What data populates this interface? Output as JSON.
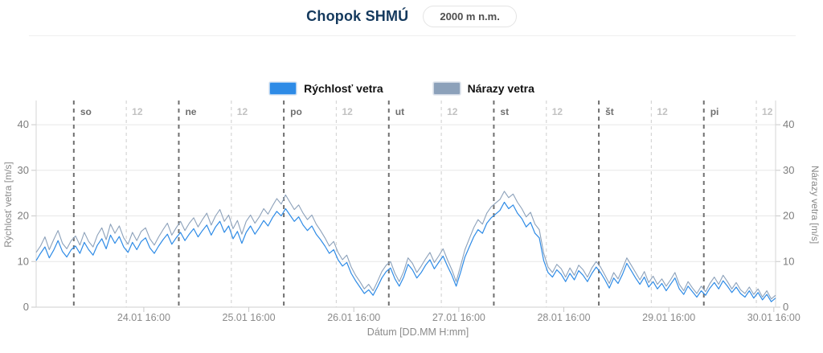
{
  "header": {
    "title": "Chopok SHMÚ",
    "badge": "2000 m n.m."
  },
  "colors": {
    "title": "#14395d",
    "speed": "#2e8be6",
    "gusts": "#8ca1ba"
  },
  "legend": [
    {
      "label": "Rýchlosť vetra",
      "color": "#2e8be6"
    },
    {
      "label": "Nárazy vetra",
      "color": "#8ca1ba"
    }
  ],
  "chart_data": {
    "type": "line",
    "title": "Chopok SHMÚ 2000 m n.m.",
    "xlabel": "Dátum [DD.MM H:mm]",
    "ylabel_left": "Rýchlosť vetra [m/s]",
    "ylabel_right": "Nárazy vetra [m/s]",
    "ylim": [
      0,
      45.3
    ],
    "yticks": [
      0,
      10,
      20,
      30,
      40
    ],
    "x_unit_hours_total": 169,
    "x_axis_note": "x in hours; hour 0 ≈ 23.01 15:20, hour 169 ≈ 30.01 16:30",
    "day_lines": [
      {
        "hour": 8.6,
        "label": "so"
      },
      {
        "hour": 32.6,
        "label": "ne"
      },
      {
        "hour": 56.6,
        "label": "po"
      },
      {
        "hour": 80.6,
        "label": "ut"
      },
      {
        "hour": 104.6,
        "label": "st"
      },
      {
        "hour": 128.6,
        "label": "št"
      },
      {
        "hour": 152.6,
        "label": "pi"
      }
    ],
    "noon_lines": [
      {
        "hour": 20.6,
        "label": "12"
      },
      {
        "hour": 44.6,
        "label": "12"
      },
      {
        "hour": 68.6,
        "label": "12"
      },
      {
        "hour": 92.6,
        "label": "12"
      },
      {
        "hour": 116.6,
        "label": "12"
      },
      {
        "hour": 140.6,
        "label": "12"
      },
      {
        "hour": 164.6,
        "label": "12"
      }
    ],
    "xticks": [
      {
        "hour": 24.6,
        "label": "24.01 16:00"
      },
      {
        "hour": 48.6,
        "label": "25.01 16:00"
      },
      {
        "hour": 72.6,
        "label": "26.01 16:00"
      },
      {
        "hour": 96.6,
        "label": "27.01 16:00"
      },
      {
        "hour": 120.6,
        "label": "28.01 16:00"
      },
      {
        "hour": 144.6,
        "label": "29.01 16:00"
      },
      {
        "hour": 168.6,
        "label": "30.01 16:00"
      }
    ],
    "points_step_hours": 1,
    "series": [
      {
        "name": "Rýchlosť vetra",
        "color": "#2e8be6",
        "values": [
          10.2,
          11.8,
          13.2,
          10.8,
          12.5,
          14.6,
          12.2,
          11.0,
          12.6,
          13.4,
          11.8,
          14.2,
          12.6,
          11.4,
          13.6,
          15.0,
          12.8,
          15.8,
          14.0,
          15.5,
          13.2,
          12.0,
          14.2,
          12.6,
          14.4,
          15.2,
          13.0,
          11.8,
          13.4,
          14.8,
          16.0,
          13.8,
          15.2,
          16.4,
          14.6,
          16.0,
          17.2,
          15.4,
          16.8,
          18.0,
          15.8,
          17.6,
          18.8,
          16.4,
          17.8,
          15.0,
          16.6,
          14.0,
          16.4,
          17.8,
          16.0,
          17.4,
          19.0,
          17.8,
          19.6,
          21.0,
          20.0,
          21.6,
          20.2,
          18.8,
          19.8,
          18.0,
          16.8,
          17.8,
          16.0,
          14.8,
          13.4,
          11.8,
          12.6,
          10.4,
          9.0,
          9.8,
          7.4,
          5.8,
          4.4,
          3.0,
          3.8,
          2.6,
          4.4,
          6.4,
          7.8,
          8.6,
          6.2,
          4.6,
          6.6,
          9.4,
          8.2,
          6.4,
          7.6,
          9.2,
          10.4,
          8.4,
          9.8,
          11.2,
          9.0,
          7.0,
          4.6,
          7.6,
          11.0,
          13.2,
          15.4,
          17.0,
          16.2,
          18.4,
          19.6,
          20.4,
          21.2,
          23.0,
          21.6,
          22.4,
          20.6,
          19.4,
          17.6,
          18.6,
          16.2,
          15.2,
          10.2,
          7.6,
          6.6,
          8.2,
          7.2,
          5.6,
          7.4,
          6.0,
          8.0,
          7.0,
          5.6,
          7.4,
          8.8,
          7.6,
          6.0,
          4.2,
          6.4,
          5.2,
          7.2,
          9.6,
          8.0,
          6.4,
          5.0,
          6.6,
          4.4,
          5.6,
          4.0,
          5.2,
          3.6,
          5.0,
          6.4,
          4.0,
          2.8,
          4.6,
          3.4,
          2.2,
          3.6,
          2.6,
          4.2,
          5.4,
          4.0,
          5.8,
          4.6,
          3.2,
          4.4,
          3.0,
          2.2,
          3.6,
          2.0,
          3.2,
          1.6,
          2.8,
          1.2,
          2.0
        ]
      },
      {
        "name": "Nárazy vetra",
        "color": "#8ca1ba",
        "values": [
          12.0,
          13.4,
          15.4,
          12.6,
          14.8,
          16.8,
          14.0,
          12.8,
          14.6,
          15.6,
          13.6,
          16.4,
          14.4,
          13.2,
          15.8,
          17.4,
          14.8,
          18.2,
          16.2,
          17.8,
          15.2,
          13.8,
          16.4,
          14.6,
          16.6,
          17.4,
          15.0,
          13.6,
          15.4,
          17.0,
          18.4,
          15.8,
          17.4,
          18.8,
          16.8,
          18.4,
          19.6,
          17.6,
          19.2,
          20.6,
          18.0,
          20.0,
          21.4,
          18.8,
          20.2,
          17.2,
          19.0,
          16.0,
          18.8,
          20.2,
          18.4,
          19.8,
          21.6,
          20.4,
          22.2,
          23.8,
          22.6,
          24.6,
          23.0,
          21.4,
          22.4,
          20.6,
          19.2,
          20.2,
          18.2,
          16.8,
          15.2,
          13.4,
          14.4,
          12.0,
          10.4,
          11.4,
          8.8,
          7.0,
          5.6,
          4.0,
          5.0,
          3.6,
          5.6,
          7.8,
          9.2,
          10.0,
          7.4,
          5.6,
          7.8,
          10.8,
          9.6,
          7.6,
          9.0,
          10.6,
          12.0,
          9.8,
          11.2,
          12.8,
          10.4,
          8.2,
          5.6,
          9.0,
          12.6,
          15.0,
          17.4,
          19.2,
          18.2,
          20.6,
          22.0,
          22.8,
          23.6,
          25.4,
          24.0,
          24.8,
          23.0,
          21.6,
          19.8,
          20.8,
          18.2,
          17.0,
          11.8,
          8.8,
          7.6,
          9.4,
          8.4,
          6.6,
          8.6,
          7.0,
          9.2,
          8.2,
          6.6,
          8.6,
          10.0,
          8.8,
          7.0,
          5.2,
          7.6,
          6.2,
          8.4,
          10.8,
          9.2,
          7.6,
          6.0,
          7.8,
          5.4,
          6.8,
          5.0,
          6.2,
          4.6,
          6.0,
          7.6,
          5.0,
          3.6,
          5.6,
          4.2,
          3.0,
          4.6,
          3.4,
          5.2,
          6.6,
          5.0,
          7.0,
          5.6,
          4.0,
          5.4,
          3.8,
          3.0,
          4.4,
          2.8,
          4.0,
          2.2,
          3.6,
          1.8,
          2.6
        ]
      }
    ]
  }
}
